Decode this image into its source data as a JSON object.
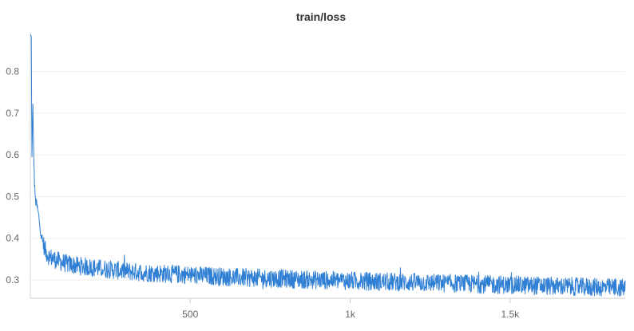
{
  "chart_data": {
    "type": "line",
    "title": "train/loss",
    "xlabel": "",
    "ylabel": "",
    "xlim": [
      0,
      1860
    ],
    "ylim": [
      0.256,
      0.895
    ],
    "x_ticks": [
      {
        "value": 500,
        "label": "500"
      },
      {
        "value": 1000,
        "label": "1k"
      },
      {
        "value": 1500,
        "label": "1.5k"
      }
    ],
    "y_ticks": [
      {
        "value": 0.3,
        "label": "0.3"
      },
      {
        "value": 0.4,
        "label": "0.4"
      },
      {
        "value": 0.5,
        "label": "0.5"
      },
      {
        "value": 0.6,
        "label": "0.6"
      },
      {
        "value": 0.7,
        "label": "0.7"
      },
      {
        "value": 0.8,
        "label": "0.8"
      }
    ],
    "grid": "horizontal",
    "legend": "none",
    "series": [
      {
        "color": "#2f7fd4",
        "x": [
          1,
          3,
          5,
          8,
          10,
          13,
          16,
          20,
          25,
          30,
          35,
          40,
          45,
          50,
          55,
          60,
          70,
          80,
          90,
          100,
          120,
          140,
          160,
          180,
          200,
          225,
          250,
          275,
          300,
          350,
          400,
          450,
          500,
          550,
          600,
          650,
          700,
          750,
          800,
          850,
          900,
          950,
          1000,
          1050,
          1100,
          1150,
          1200,
          1250,
          1300,
          1350,
          1400,
          1450,
          1500,
          1550,
          1600,
          1650,
          1700,
          1750,
          1800,
          1850,
          1860
        ],
        "y": [
          0.885,
          0.88,
          0.59,
          0.72,
          0.62,
          0.53,
          0.49,
          0.48,
          0.46,
          0.43,
          0.4,
          0.39,
          0.375,
          0.365,
          0.36,
          0.355,
          0.352,
          0.348,
          0.345,
          0.342,
          0.338,
          0.335,
          0.333,
          0.331,
          0.329,
          0.327,
          0.325,
          0.323,
          0.321,
          0.318,
          0.316,
          0.314,
          0.312,
          0.31,
          0.308,
          0.306,
          0.305,
          0.304,
          0.303,
          0.301,
          0.3,
          0.299,
          0.298,
          0.297,
          0.296,
          0.295,
          0.294,
          0.293,
          0.292,
          0.291,
          0.29,
          0.289,
          0.288,
          0.287,
          0.286,
          0.285,
          0.284,
          0.283,
          0.282,
          0.281,
          0.28
        ]
      }
    ]
  }
}
